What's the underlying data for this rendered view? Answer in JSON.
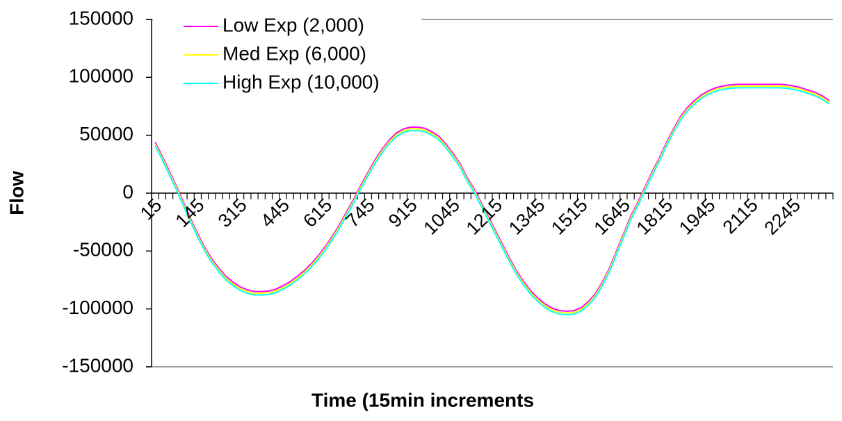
{
  "chart_data": {
    "type": "line",
    "x_label": "Time (15min increments",
    "y_label": "Flow",
    "categories": [
      "15",
      null,
      null,
      null,
      null,
      null,
      "145",
      null,
      null,
      null,
      null,
      null,
      "315",
      null,
      null,
      null,
      null,
      null,
      "445",
      null,
      null,
      null,
      null,
      null,
      "615",
      null,
      null,
      null,
      null,
      null,
      "745",
      null,
      null,
      null,
      null,
      null,
      "915",
      null,
      null,
      null,
      null,
      null,
      "1045",
      null,
      null,
      null,
      null,
      null,
      "1215",
      null,
      null,
      null,
      null,
      null,
      "1345",
      null,
      null,
      null,
      null,
      null,
      "1515",
      null,
      null,
      null,
      null,
      null,
      "1645",
      null,
      null,
      null,
      null,
      null,
      "1815",
      null,
      null,
      null,
      null,
      null,
      "1945",
      null,
      null,
      null,
      null,
      null,
      "2115",
      null,
      null,
      null,
      null,
      null,
      "2245",
      null,
      null,
      null,
      null,
      null
    ],
    "series": [
      {
        "name": "Low Exp (2,000)",
        "color": "#ff00ff",
        "values": [
          44000,
          32000,
          19000,
          6000,
          -8000,
          -22000,
          -35000,
          -47000,
          -57000,
          -65000,
          -72000,
          -77000,
          -81000,
          -83500,
          -85000,
          -85000,
          -84500,
          -83000,
          -80000,
          -76500,
          -72000,
          -67000,
          -61000,
          -54000,
          -46000,
          -37000,
          -27000,
          -16000,
          -5000,
          7000,
          18000,
          29000,
          38000,
          46000,
          52000,
          55500,
          57000,
          57000,
          56000,
          53000,
          49000,
          42000,
          34000,
          25000,
          13000,
          3000,
          -9000,
          -21000,
          -33000,
          -45000,
          -57000,
          -68000,
          -77000,
          -85000,
          -91000,
          -96000,
          -99500,
          -101500,
          -102000,
          -101500,
          -99000,
          -94000,
          -87000,
          -77000,
          -65000,
          -50000,
          -35000,
          -20000,
          -8000,
          5000,
          18000,
          30000,
          43000,
          55000,
          66000,
          74000,
          80000,
          85000,
          88500,
          91000,
          92500,
          93500,
          94000,
          94000,
          94000,
          94000,
          94000,
          94000,
          94000,
          93500,
          92500,
          91000,
          89000,
          87000,
          84000,
          80000
        ]
      },
      {
        "name": "Med Exp (6,000)",
        "color": "#ffff00",
        "values": [
          42500,
          30500,
          17500,
          4500,
          -9500,
          -23500,
          -36500,
          -48500,
          -58500,
          -66500,
          -73500,
          -78500,
          -82500,
          -85000,
          -86500,
          -86500,
          -86000,
          -84500,
          -81500,
          -78000,
          -73500,
          -68500,
          -62500,
          -55500,
          -47500,
          -38500,
          -28500,
          -17500,
          -6500,
          5500,
          16500,
          27500,
          36500,
          44500,
          50500,
          54000,
          55500,
          55500,
          54500,
          51500,
          47500,
          40500,
          32500,
          23500,
          11500,
          1500,
          -10500,
          -22500,
          -34500,
          -46500,
          -58500,
          -69500,
          -78500,
          -86500,
          -92500,
          -97500,
          -101000,
          -103000,
          -103500,
          -103000,
          -100500,
          -95500,
          -88500,
          -78500,
          -66500,
          -51500,
          -36500,
          -21500,
          -9500,
          3500,
          16500,
          28500,
          41500,
          53500,
          64500,
          72500,
          78500,
          83500,
          87000,
          89500,
          91000,
          92000,
          92500,
          92500,
          92500,
          92500,
          92500,
          92500,
          92500,
          92000,
          91000,
          89500,
          87500,
          85500,
          82500,
          78500
        ]
      },
      {
        "name": "High Exp (10,000)",
        "color": "#00ffff",
        "values": [
          41000,
          29000,
          16000,
          3000,
          -11000,
          -25000,
          -38000,
          -50000,
          -60000,
          -68000,
          -75000,
          -80000,
          -84000,
          -86500,
          -88000,
          -88000,
          -87500,
          -86000,
          -83000,
          -79500,
          -75000,
          -70000,
          -64000,
          -57000,
          -49000,
          -40000,
          -30000,
          -19000,
          -8000,
          4000,
          15000,
          26000,
          35000,
          43000,
          49000,
          52500,
          54000,
          54000,
          53000,
          50000,
          46000,
          39000,
          31000,
          22000,
          10000,
          0,
          -12000,
          -24000,
          -36000,
          -48000,
          -60000,
          -71000,
          -80000,
          -88000,
          -94000,
          -99000,
          -102500,
          -104500,
          -105000,
          -104500,
          -102000,
          -97000,
          -90000,
          -80000,
          -68000,
          -53000,
          -38000,
          -23000,
          -11000,
          2000,
          15000,
          27000,
          40000,
          52000,
          63000,
          71000,
          77000,
          82000,
          85500,
          88000,
          89500,
          90500,
          91000,
          91000,
          91000,
          91000,
          91000,
          91000,
          91000,
          90500,
          89500,
          88000,
          86000,
          84000,
          81000,
          77000
        ]
      }
    ],
    "ylim": [
      -150000,
      150000
    ],
    "yticks": [
      -150000,
      -100000,
      -50000,
      0,
      50000,
      100000,
      150000
    ],
    "grid": false,
    "legend": "upper left"
  }
}
